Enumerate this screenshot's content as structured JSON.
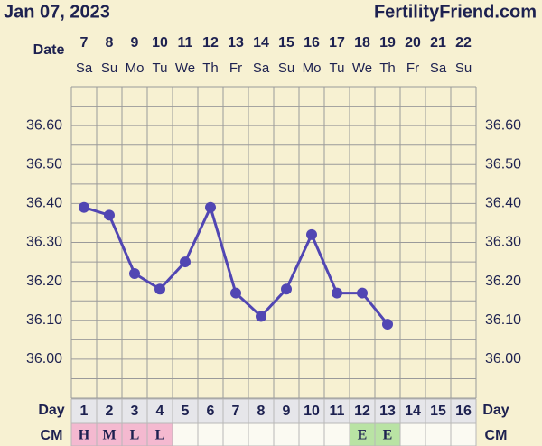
{
  "chart_data": {
    "type": "line",
    "header_left": "Jan 07, 2023",
    "header_right": "FertilityFriend.com",
    "date_label": "Date",
    "day_label": "Day",
    "cm_label": "CM",
    "dates": [
      7,
      8,
      9,
      10,
      11,
      12,
      13,
      14,
      15,
      16,
      17,
      18,
      19,
      20,
      21,
      22
    ],
    "weekdays": [
      "Sa",
      "Su",
      "Mo",
      "Tu",
      "We",
      "Th",
      "Fr",
      "Sa",
      "Su",
      "Mo",
      "Tu",
      "We",
      "Th",
      "Fr",
      "Sa",
      "Su"
    ],
    "cycle_days": [
      1,
      2,
      3,
      4,
      5,
      6,
      7,
      8,
      9,
      10,
      11,
      12,
      13,
      14,
      15,
      16
    ],
    "cm": [
      "H",
      "M",
      "L",
      "L",
      null,
      null,
      null,
      null,
      null,
      null,
      null,
      "E",
      "E",
      null,
      null,
      null
    ],
    "cm_colors": {
      "H": "#f4b9d0",
      "M": "#f4b9d0",
      "L": "#f4b9d0",
      "E": "#b9e3a4"
    },
    "values": [
      36.39,
      36.37,
      36.22,
      36.18,
      36.25,
      36.39,
      36.17,
      36.11,
      36.18,
      36.32,
      36.17,
      36.17,
      36.09,
      null,
      null,
      null
    ],
    "color": "#5146b3",
    "ylim": [
      35.9,
      36.7
    ],
    "yticks": [
      {
        "value": 36.0,
        "label": "36.00"
      },
      {
        "value": 36.1,
        "label": "36.10"
      },
      {
        "value": 36.2,
        "label": "36.20"
      },
      {
        "value": 36.3,
        "label": "36.30"
      },
      {
        "value": 36.4,
        "label": "36.40"
      },
      {
        "value": 36.5,
        "label": "36.50"
      },
      {
        "value": 36.6,
        "label": "36.60"
      }
    ],
    "yminorticks": [
      35.95,
      36.05,
      36.15,
      36.25,
      36.35,
      36.45,
      36.55,
      36.65
    ],
    "grid": true
  }
}
